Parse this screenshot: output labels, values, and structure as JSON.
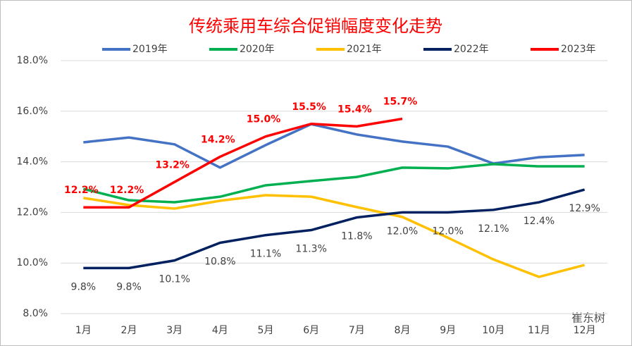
{
  "chart_data": {
    "type": "line",
    "title": "传统乘用车综合促销幅度变化走势",
    "categories": [
      "1月",
      "2月",
      "3月",
      "4月",
      "5月",
      "6月",
      "7月",
      "8月",
      "9月",
      "10月",
      "11月",
      "12月"
    ],
    "series": [
      {
        "name": "2019年",
        "color": "#4472c4",
        "values": [
          14.77,
          14.96,
          14.69,
          13.77,
          14.66,
          15.49,
          15.08,
          14.8,
          14.6,
          13.93,
          14.18,
          14.27
        ]
      },
      {
        "name": "2020年",
        "color": "#00b050",
        "values": [
          12.93,
          12.48,
          12.4,
          12.62,
          13.07,
          13.24,
          13.4,
          13.77,
          13.74,
          13.91,
          13.82,
          13.82
        ]
      },
      {
        "name": "2021年",
        "color": "#ffc000",
        "values": [
          12.57,
          12.29,
          12.15,
          12.46,
          12.68,
          12.62,
          12.21,
          11.82,
          11.0,
          10.14,
          9.45,
          9.92
        ]
      },
      {
        "name": "2022年",
        "color": "#002060",
        "values": [
          9.8,
          9.8,
          10.1,
          10.8,
          11.1,
          11.3,
          11.8,
          12.0,
          12.0,
          12.1,
          12.4,
          12.9
        ],
        "value_labels": [
          "9.8%",
          "9.8%",
          "10.1%",
          "10.8%",
          "11.1%",
          "11.3%",
          "11.8%",
          "12.0%",
          "12.0%",
          "12.1%",
          "12.4%",
          "12.9%"
        ]
      },
      {
        "name": "2023年",
        "color": "#ff0000",
        "values": [
          12.2,
          12.2,
          13.2,
          14.2,
          15.0,
          15.5,
          15.4,
          15.7,
          null,
          null,
          null,
          null
        ],
        "value_labels": [
          "12.2%",
          "12.2%",
          "13.2%",
          "14.2%",
          "15.0%",
          "15.5%",
          "15.4%",
          "15.7%",
          null,
          null,
          null,
          null
        ]
      }
    ],
    "ylim": [
      8,
      18
    ],
    "yticks": [
      {
        "value": 8,
        "label": "8.0%"
      },
      {
        "value": 10,
        "label": "10.0%"
      },
      {
        "value": 12,
        "label": "12.0%"
      },
      {
        "value": 14,
        "label": "14.0%"
      },
      {
        "value": 16,
        "label": "16.0%"
      },
      {
        "value": 18,
        "label": "18.0%"
      }
    ],
    "grid": true,
    "legend": "top",
    "watermark": "崔东树"
  }
}
